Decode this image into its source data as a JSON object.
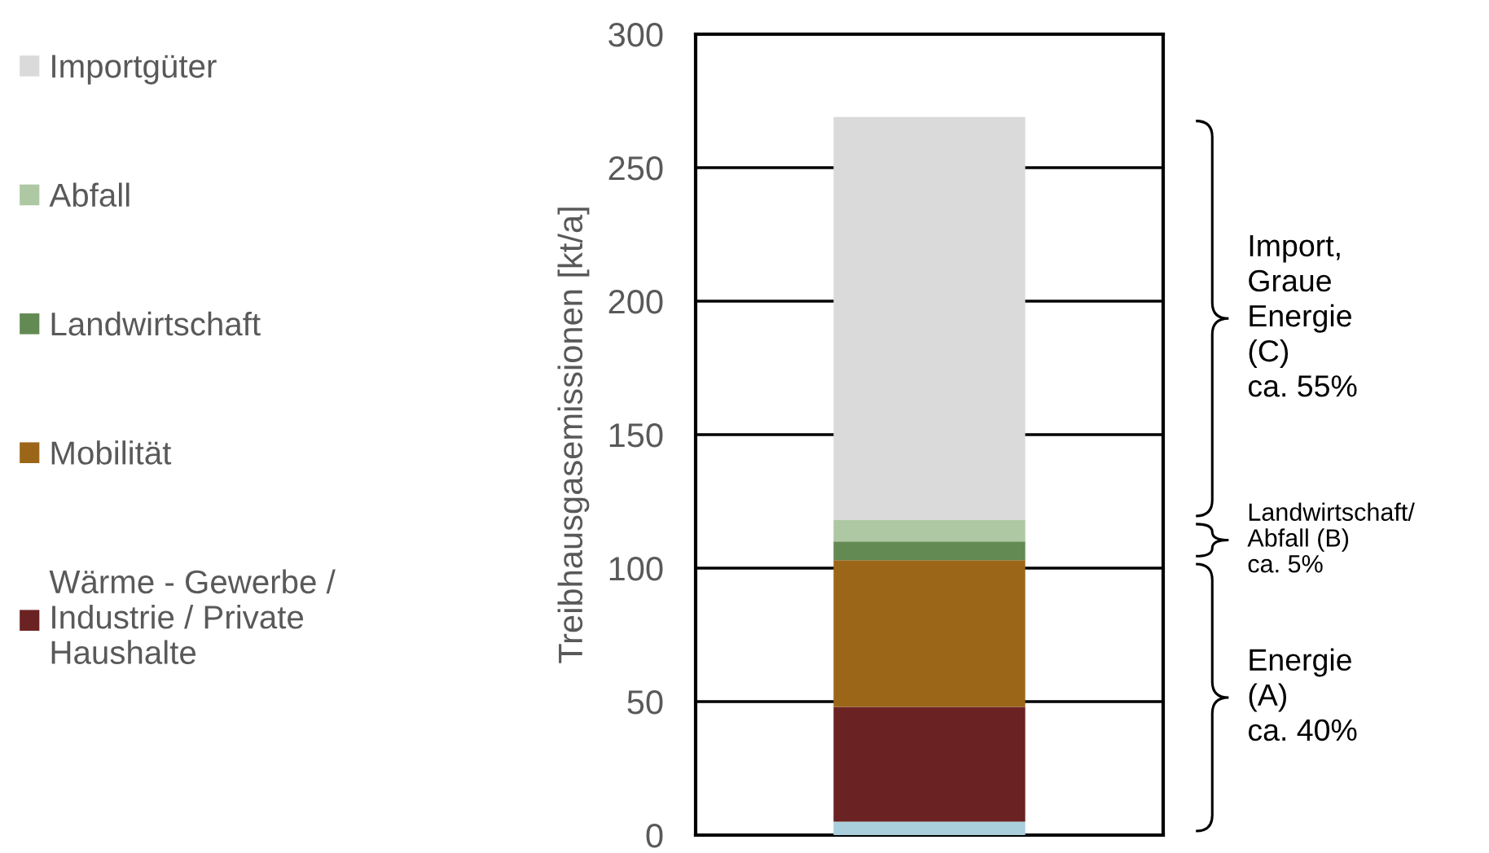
{
  "chart_data": {
    "type": "bar",
    "stacked": true,
    "ylabel": "Treibhausgasemissionen [kt/a]",
    "categories": [
      null
    ],
    "series": [
      {
        "color": "#a9cfdc",
        "values": [
          5
        ]
      },
      {
        "name": "Wärme - Gewerbe /\nIndustrie / Private\nHaushalte",
        "color": "#6a2322",
        "values": [
          43
        ]
      },
      {
        "name": "Mobilität",
        "color": "#9c6619",
        "values": [
          55
        ]
      },
      {
        "name": "Landwirtschaft",
        "color": "#628a52",
        "values": [
          7
        ]
      },
      {
        "name": "Abfall",
        "color": "#adc8a3",
        "values": [
          8
        ]
      },
      {
        "name": "Importgüter",
        "color": "#dadada",
        "values": [
          151
        ]
      }
    ],
    "ylim": [
      0,
      300
    ],
    "yticks": [
      0,
      50,
      100,
      150,
      200,
      250,
      300
    ],
    "grid": "y",
    "legend": "left",
    "annotations": [
      "Import,\nGraue\nEnergie\n(C)\nca. 55%",
      "Landwirtschaft/\nAbfall (B)\nca. 5%",
      "Energie\n(A)\nca. 40%"
    ]
  }
}
